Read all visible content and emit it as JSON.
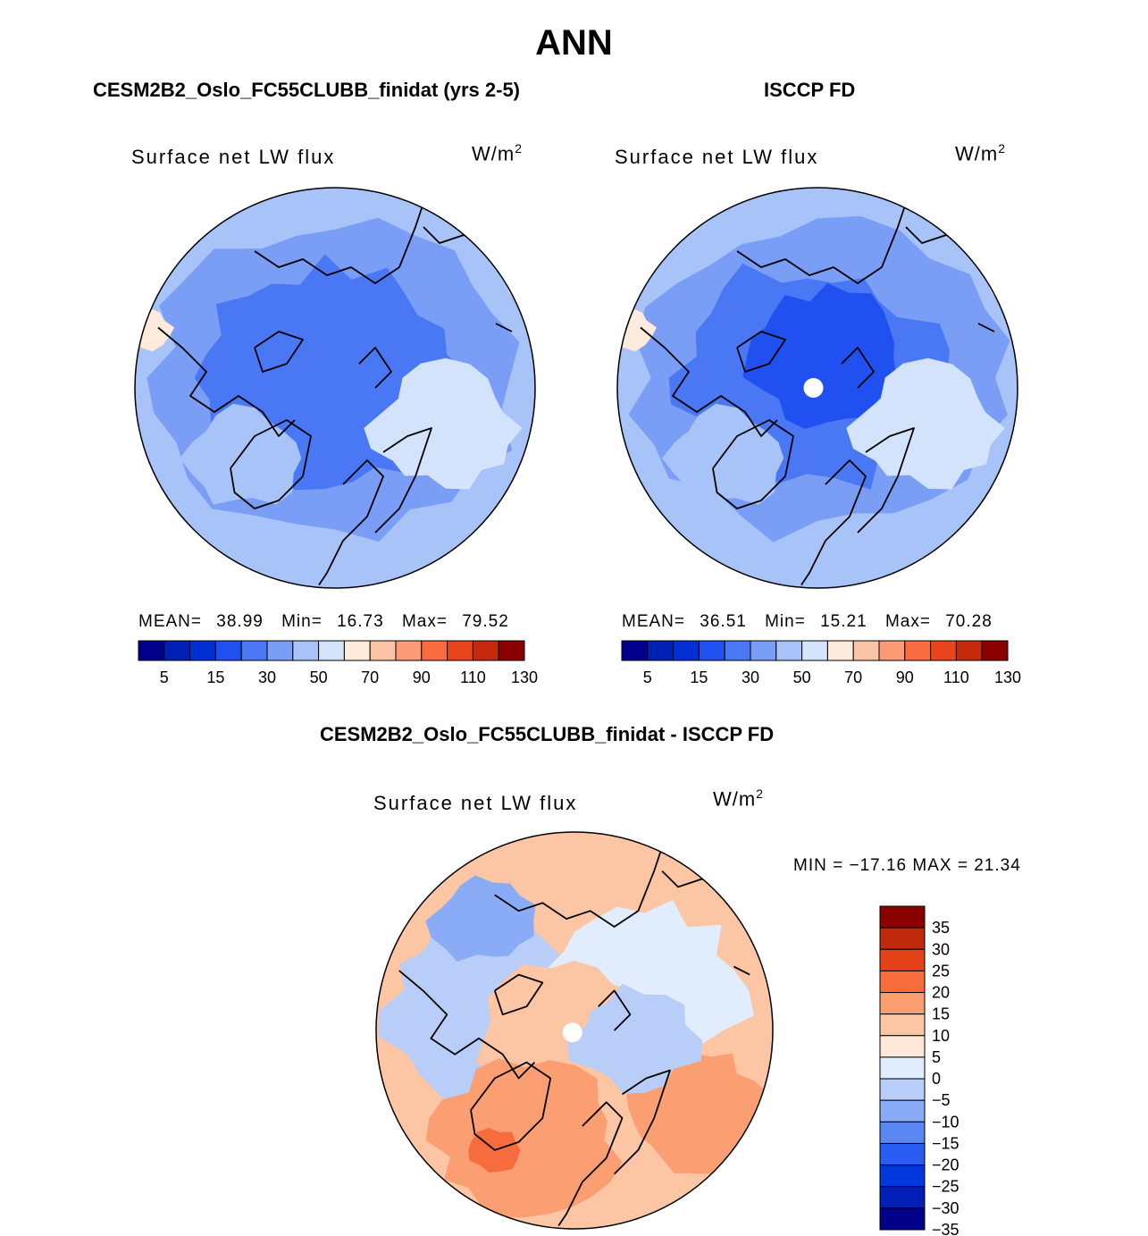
{
  "figure": {
    "title": "ANN",
    "colors": {
      "base_palette": [
        "#00008b",
        "#0020b4",
        "#0030d4",
        "#2050f0",
        "#4a78f5",
        "#7a9ef5",
        "#a8c3f7",
        "#d2e3fb",
        "#feebdb",
        "#fcc4a6",
        "#fc9a75",
        "#f96b41",
        "#e8451c",
        "#c42a0c",
        "#8b0000"
      ],
      "diff_palette": [
        "#00008b",
        "#001fb6",
        "#0038dd",
        "#2a5cf2",
        "#5b87f4",
        "#8aabf6",
        "#b8cdf8",
        "#e1ecfc",
        "#fde7d8",
        "#fcc5a4",
        "#fb9e72",
        "#f76c3d",
        "#e4431a",
        "#bf2a0c",
        "#8b0000"
      ]
    }
  },
  "panels": {
    "model": {
      "title": "CESM2B2_Oslo_FC55CLUBB_finidat (yrs 2-5)",
      "variable": "Surface net LW flux",
      "units_base": "W/m",
      "units_exp": "2",
      "stats": {
        "mean_label": "MEAN=",
        "mean": "38.99",
        "min_label": "Min=",
        "min": "16.73",
        "max_label": "Max=",
        "max": "79.52"
      },
      "colorbar_ticks": [
        "5",
        "15",
        "30",
        "50",
        "70",
        "90",
        "110",
        "130"
      ]
    },
    "obs": {
      "title": "ISCCP FD",
      "variable": "Surface net LW flux",
      "units_base": "W/m",
      "units_exp": "2",
      "stats": {
        "mean_label": "MEAN=",
        "mean": "36.51",
        "min_label": "Min=",
        "min": "15.21",
        "max_label": "Max=",
        "max": "70.28"
      },
      "colorbar_ticks": [
        "5",
        "15",
        "30",
        "50",
        "70",
        "90",
        "110",
        "130"
      ]
    },
    "diff": {
      "title": "CESM2B2_Oslo_FC55CLUBB_finidat - ISCCP FD",
      "variable": "Surface net LW flux",
      "units_base": "W/m",
      "units_exp": "2",
      "minmax": "MIN = −17.16 MAX =  21.34",
      "colorbar_ticks": [
        "35",
        "30",
        "25",
        "20",
        "15",
        "10",
        "5",
        "0",
        "−5",
        "−10",
        "−15",
        "−20",
        "−25",
        "−30",
        "−35"
      ]
    }
  }
}
